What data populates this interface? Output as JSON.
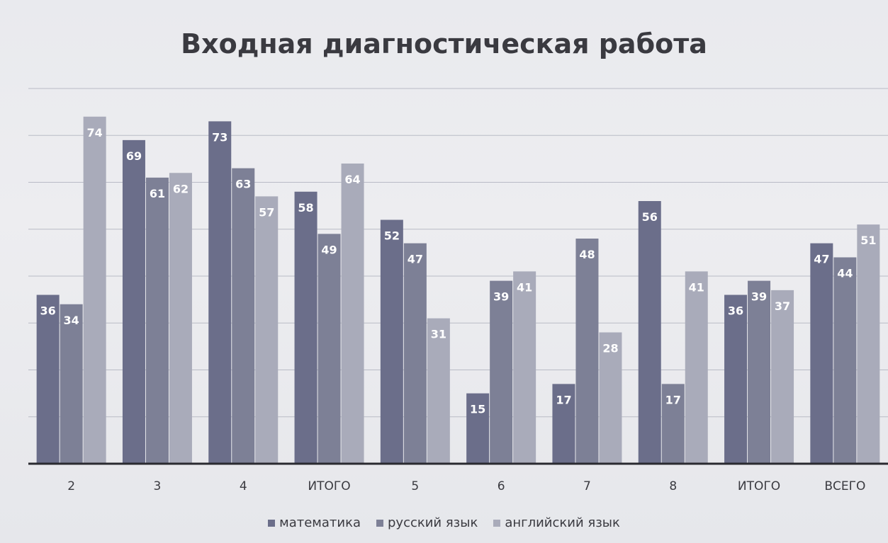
{
  "chart_data": {
    "type": "bar",
    "title": "Входная диагностическая работа",
    "categories": [
      "2",
      "3",
      "4",
      "ИТОГО",
      "5",
      "6",
      "7",
      "8",
      "ИТОГО",
      "ВСЕГО"
    ],
    "series": [
      {
        "name": "математика",
        "color": "#6b6e8a",
        "values": [
          36,
          69,
          73,
          58,
          52,
          15,
          17,
          56,
          36,
          47
        ]
      },
      {
        "name": "русский язык",
        "color": "#7d8096",
        "values": [
          34,
          61,
          63,
          49,
          47,
          39,
          48,
          17,
          39,
          44
        ]
      },
      {
        "name": "английский язык",
        "color": "#a9abba",
        "values": [
          74,
          62,
          57,
          64,
          31,
          41,
          28,
          41,
          37,
          51
        ]
      }
    ],
    "ylim": [
      0,
      80
    ],
    "grid": true,
    "legend_position": "bottom",
    "data_labels": true
  }
}
